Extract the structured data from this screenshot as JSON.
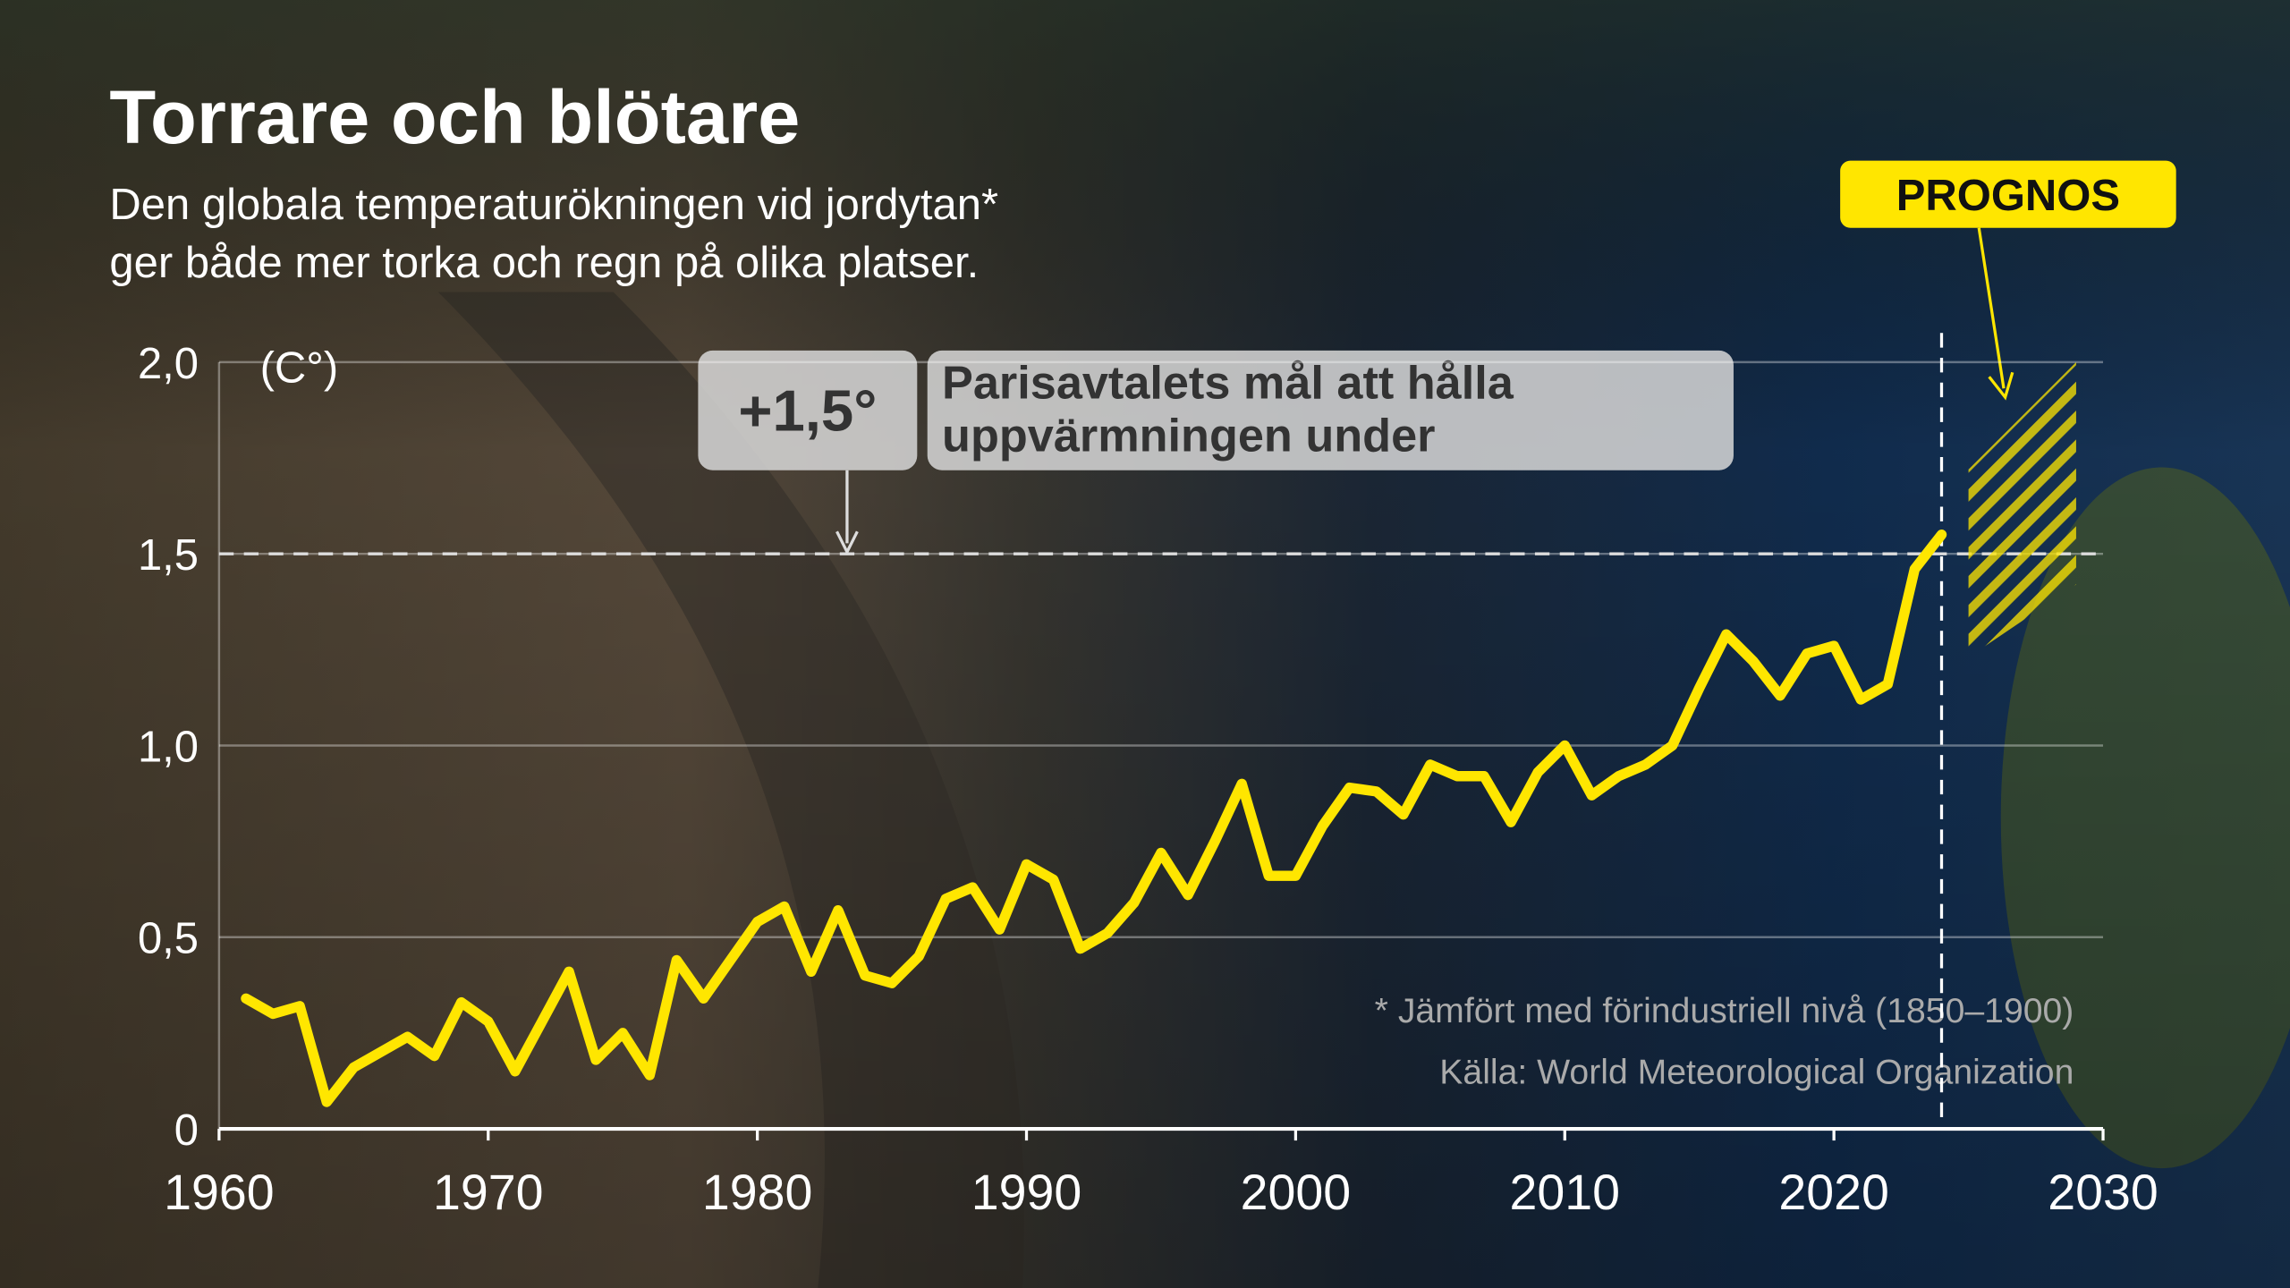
{
  "chart_data": {
    "type": "line",
    "title": "Torrare och blötare",
    "subtitle": [
      "Den globala temperaturökningen vid jordytan*",
      "ger både mer torka och regn på olika platser."
    ],
    "y_unit": "(C°)",
    "x": [
      1961,
      1962,
      1963,
      1964,
      1965,
      1966,
      1967,
      1968,
      1969,
      1970,
      1971,
      1972,
      1973,
      1974,
      1975,
      1976,
      1977,
      1978,
      1979,
      1980,
      1981,
      1982,
      1983,
      1984,
      1985,
      1986,
      1987,
      1988,
      1989,
      1990,
      1991,
      1992,
      1993,
      1994,
      1995,
      1996,
      1997,
      1998,
      1999,
      2000,
      2001,
      2002,
      2003,
      2004,
      2005,
      2006,
      2007,
      2008,
      2009,
      2010,
      2011,
      2012,
      2013,
      2014,
      2015,
      2016,
      2017,
      2018,
      2019,
      2020,
      2021,
      2022,
      2023,
      2024
    ],
    "series": [
      {
        "color": "#ffe600",
        "values": [
          0.34,
          0.3,
          0.32,
          0.07,
          0.16,
          0.2,
          0.24,
          0.19,
          0.33,
          0.28,
          0.15,
          0.28,
          0.41,
          0.18,
          0.25,
          0.14,
          0.44,
          0.34,
          0.44,
          0.54,
          0.58,
          0.41,
          0.57,
          0.4,
          0.38,
          0.45,
          0.6,
          0.63,
          0.52,
          0.69,
          0.65,
          0.47,
          0.51,
          0.59,
          0.72,
          0.61,
          0.75,
          0.9,
          0.66,
          0.66,
          0.79,
          0.89,
          0.88,
          0.82,
          0.95,
          0.92,
          0.92,
          0.8,
          0.93,
          1.0,
          0.87,
          0.92,
          0.95,
          1.0,
          1.15,
          1.29,
          1.22,
          1.13,
          1.24,
          1.26,
          1.12,
          1.16,
          1.46,
          1.55
        ]
      }
    ],
    "forecast": {
      "label": "PROGNOS",
      "start": 2024,
      "x": [
        2025,
        2029
      ],
      "high": [
        1.72,
        2.0
      ],
      "low": [
        1.23,
        1.42
      ],
      "color": "#ffe600"
    },
    "threshold": {
      "value": 1.5,
      "label": "+1,5°",
      "text": [
        "Parisavtalets mål att hålla",
        "uppvärmningen under"
      ]
    },
    "xlim": [
      1960,
      2030
    ],
    "xticks": [
      1960,
      1970,
      1980,
      1990,
      2000,
      2010,
      2020,
      2030
    ],
    "ylim": [
      0,
      2.0
    ],
    "yticks": [
      0,
      {
        "value": 0.5,
        "label": "0,5"
      },
      {
        "value": 1.0,
        "label": "1,0"
      },
      {
        "value": 1.5,
        "label": "1,5"
      },
      {
        "value": 2.0,
        "label": "2,0"
      }
    ],
    "grid": true,
    "footnote": "* Jämfört med förindustriell nivå (1850–1900)",
    "source": "Källa: World Meteorological Organization"
  }
}
